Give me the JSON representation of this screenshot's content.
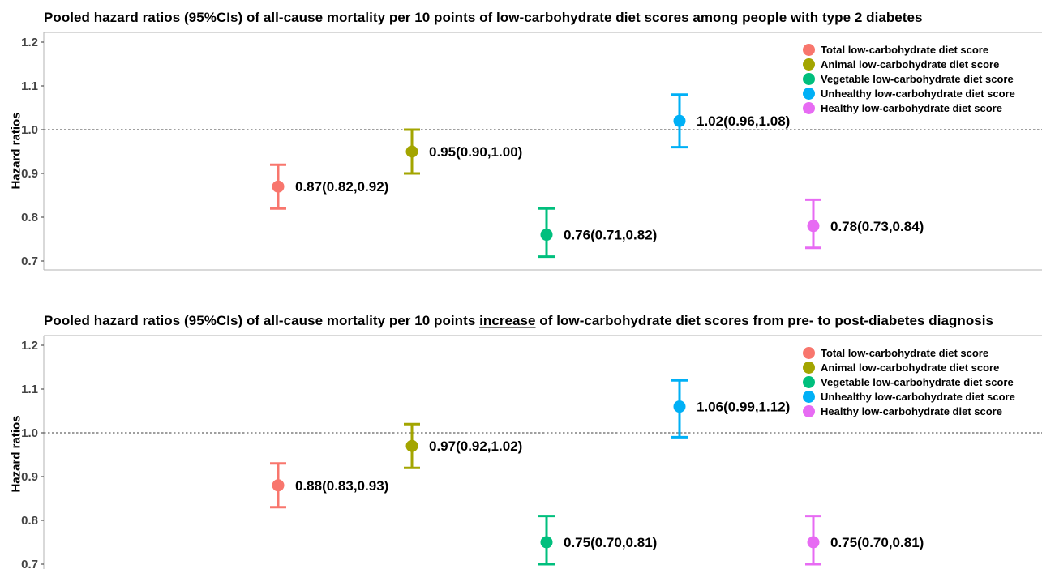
{
  "chart_data": [
    {
      "type": "scatter",
      "title": "Pooled hazard ratios (95%CIs) of all-cause mortality per 10 points of low-carbohydrate diet scores among people with type 2 diabetes",
      "xlabel": "",
      "ylabel": "Hazard ratios",
      "ylim": [
        0.68,
        1.22
      ],
      "yticks": [
        "0.7",
        "0.8",
        "0.9",
        "1.0",
        "1.1",
        "1.2"
      ],
      "reference_line": 1.0,
      "grid": false,
      "legend_position": "top-right",
      "series": [
        {
          "name": "Total low-carbohydrate diet score",
          "color": "#F8766D",
          "value": 0.87,
          "lower": 0.82,
          "upper": 0.92,
          "label": "0.87(0.82,0.92)"
        },
        {
          "name": "Animal low-carbohydrate diet score",
          "color": "#A3A500",
          "value": 0.95,
          "lower": 0.9,
          "upper": 1.0,
          "label": "0.95(0.90,1.00)"
        },
        {
          "name": "Vegetable low-carbohydrate diet score",
          "color": "#00BF7D",
          "value": 0.76,
          "lower": 0.71,
          "upper": 0.82,
          "label": "0.76(0.71,0.82)"
        },
        {
          "name": "Unhealthy low-carbohydrate diet score",
          "color": "#00B0F6",
          "value": 1.02,
          "lower": 0.96,
          "upper": 1.08,
          "label": "1.02(0.96,1.08)"
        },
        {
          "name": "Healthy low-carbohydrate diet score",
          "color": "#E76BF3",
          "value": 0.78,
          "lower": 0.73,
          "upper": 0.84,
          "label": "0.78(0.73,0.84)"
        }
      ]
    },
    {
      "type": "scatter",
      "title_parts": [
        "Pooled hazard ratios (95%CIs) of all-cause mortality per 10 points ",
        "increase",
        " of low-carbohydrate diet scores from pre- to post-diabetes diagnosis"
      ],
      "xlabel": "",
      "ylabel": "Hazard ratios",
      "ylim": [
        0.68,
        1.22
      ],
      "yticks": [
        "0.7",
        "0.8",
        "0.9",
        "1.0",
        "1.1",
        "1.2"
      ],
      "reference_line": 1.0,
      "grid": false,
      "legend_position": "top-right",
      "series": [
        {
          "name": "Total low-carbohydrate diet score",
          "color": "#F8766D",
          "value": 0.88,
          "lower": 0.83,
          "upper": 0.93,
          "label": "0.88(0.83,0.93)"
        },
        {
          "name": "Animal low-carbohydrate diet score",
          "color": "#A3A500",
          "value": 0.97,
          "lower": 0.92,
          "upper": 1.02,
          "label": "0.97(0.92,1.02)"
        },
        {
          "name": "Vegetable low-carbohydrate diet score",
          "color": "#00BF7D",
          "value": 0.75,
          "lower": 0.7,
          "upper": 0.81,
          "label": "0.75(0.70,0.81)"
        },
        {
          "name": "Unhealthy low-carbohydrate diet score",
          "color": "#00B0F6",
          "value": 1.06,
          "lower": 0.99,
          "upper": 1.12,
          "label": "1.06(0.99,1.12)"
        },
        {
          "name": "Healthy low-carbohydrate diet score",
          "color": "#E76BF3",
          "value": 0.75,
          "lower": 0.7,
          "upper": 0.81,
          "label": "0.75(0.70,0.81)"
        }
      ]
    }
  ]
}
